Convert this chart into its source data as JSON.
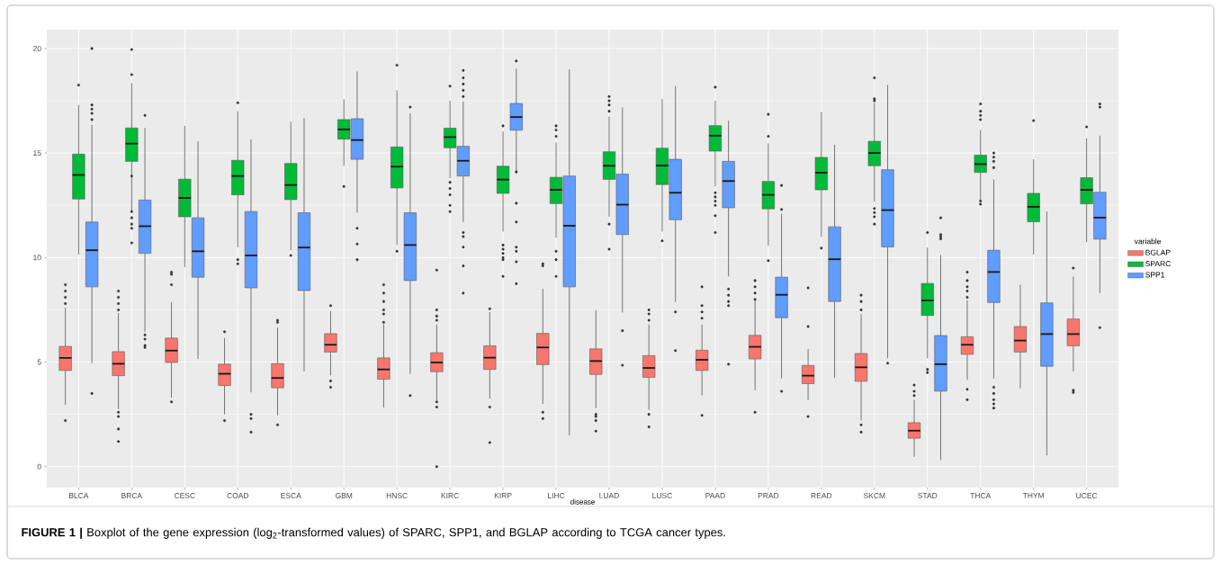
{
  "chart_data": {
    "type": "box",
    "categories": [
      "BLCA",
      "BRCA",
      "CESC",
      "COAD",
      "ESCA",
      "GBM",
      "HNSC",
      "KIRC",
      "KIRP",
      "LIHC",
      "LUAD",
      "LUSC",
      "PAAD",
      "PRAD",
      "READ",
      "SKCM",
      "STAD",
      "THCA",
      "THYM",
      "UCEC"
    ],
    "xlabel": "disease",
    "legend_title": "variable",
    "legend": "right",
    "grid": true,
    "ylim": [
      -1,
      20.9
    ],
    "yticks": [
      0,
      5,
      10,
      15,
      20
    ],
    "annotations": [
      "**FIGURE 1 |** Boxplot of the gene expression (log$_{2}$-transformed values) of SPARC, SPP1, and BGLAP according to TCGA cancer types."
    ],
    "series": [
      {
        "name": "BGLAP",
        "color": "#f8766d",
        "boxes": [
          {
            "low": 2.95,
            "q1": 4.6,
            "median": 5.2,
            "q3": 5.75,
            "high": 7.6,
            "outliers": [
              2.2,
              7.8,
              8.1,
              8.4,
              8.7
            ]
          },
          {
            "low": 2.75,
            "q1": 4.35,
            "median": 4.92,
            "q3": 5.5,
            "high": 7.35,
            "outliers": [
              1.2,
              1.8,
              2.4,
              2.6,
              7.5,
              7.8,
              8.1,
              8.4
            ]
          },
          {
            "low": 3.3,
            "q1": 4.98,
            "median": 5.55,
            "q3": 6.15,
            "high": 7.87,
            "outliers": [
              3.1,
              8.7,
              9.2,
              9.3
            ]
          },
          {
            "low": 2.5,
            "q1": 3.88,
            "median": 4.44,
            "q3": 4.9,
            "high": 6.15,
            "outliers": [
              2.2,
              6.45
            ]
          },
          {
            "low": 2.45,
            "q1": 3.77,
            "median": 4.24,
            "q3": 4.93,
            "high": 6.65,
            "outliers": [
              2.0,
              6.9,
              7.0
            ]
          },
          {
            "low": 4.37,
            "q1": 5.48,
            "median": 5.83,
            "q3": 6.36,
            "high": 7.44,
            "outliers": [
              3.8,
              4.1,
              7.7
            ]
          },
          {
            "low": 2.82,
            "q1": 4.18,
            "median": 4.65,
            "q3": 5.2,
            "high": 6.8,
            "outliers": [
              6.9,
              7.3,
              7.5,
              7.9,
              8.3,
              8.7
            ]
          },
          {
            "low": 3.18,
            "q1": 4.54,
            "median": 4.98,
            "q3": 5.45,
            "high": 6.8,
            "outliers": [
              0.0,
              2.85,
              3.1,
              7.0,
              7.2,
              7.5,
              9.4
            ]
          },
          {
            "low": 3.25,
            "q1": 4.65,
            "median": 5.21,
            "q3": 5.78,
            "high": 7.4,
            "outliers": [
              1.15,
              2.85,
              7.55
            ]
          },
          {
            "low": 3.0,
            "q1": 4.88,
            "median": 5.7,
            "q3": 6.37,
            "high": 8.5,
            "outliers": [
              2.3,
              2.6,
              9.6,
              9.7
            ]
          },
          {
            "low": 2.8,
            "q1": 4.41,
            "median": 5.05,
            "q3": 5.63,
            "high": 7.49,
            "outliers": [
              1.7,
              2.2,
              2.4,
              2.5
            ]
          },
          {
            "low": 2.72,
            "q1": 4.27,
            "median": 4.72,
            "q3": 5.31,
            "high": 6.8,
            "outliers": [
              1.9,
              2.5,
              7.0,
              7.3,
              7.5
            ]
          },
          {
            "low": 3.4,
            "q1": 4.6,
            "median": 5.11,
            "q3": 5.57,
            "high": 6.8,
            "outliers": [
              2.45,
              7.1,
              7.4,
              7.7,
              8.6
            ]
          },
          {
            "low": 3.65,
            "q1": 5.15,
            "median": 5.73,
            "q3": 6.28,
            "high": 7.95,
            "outliers": [
              2.6,
              8.0,
              8.3,
              8.6,
              8.9
            ]
          },
          {
            "low": 3.19,
            "q1": 3.97,
            "median": 4.35,
            "q3": 4.84,
            "high": 5.63,
            "outliers": [
              2.4,
              6.7,
              8.55
            ]
          },
          {
            "low": 2.22,
            "q1": 4.08,
            "median": 4.75,
            "q3": 5.41,
            "high": 7.3,
            "outliers": [
              1.65,
              2.0,
              7.5,
              7.9,
              8.2
            ]
          },
          {
            "low": 0.46,
            "q1": 1.36,
            "median": 1.72,
            "q3": 2.1,
            "high": 3.19,
            "outliers": [
              3.4,
              3.6,
              3.9
            ]
          },
          {
            "low": 4.15,
            "q1": 5.37,
            "median": 5.83,
            "q3": 6.21,
            "high": 7.95,
            "outliers": [
              3.2,
              3.7,
              8.1,
              8.4,
              8.6,
              8.9,
              9.3
            ]
          },
          {
            "low": 3.75,
            "q1": 5.48,
            "median": 6.03,
            "q3": 6.7,
            "high": 8.69
          },
          {
            "low": 4.54,
            "q1": 5.78,
            "median": 6.34,
            "q3": 7.06,
            "high": 9.09,
            "outliers": [
              3.55,
              3.65,
              9.5
            ]
          }
        ]
      },
      {
        "name": "SPARC",
        "color": "#00ba38",
        "boxes": [
          {
            "low": 10.15,
            "q1": 12.8,
            "median": 13.95,
            "q3": 14.95,
            "high": 17.3,
            "outliers": [
              18.25
            ]
          },
          {
            "low": 12.25,
            "q1": 14.6,
            "median": 15.45,
            "q3": 16.2,
            "high": 18.35,
            "outliers": [
              10.7,
              11.4,
              11.6,
              11.9,
              12.2,
              13.9,
              18.75,
              19.95
            ]
          },
          {
            "low": 9.55,
            "q1": 11.95,
            "median": 12.85,
            "q3": 13.75,
            "high": 16.3
          },
          {
            "low": 10.5,
            "q1": 13.0,
            "median": 13.9,
            "q3": 14.65,
            "high": 17.0,
            "outliers": [
              9.7,
              9.9,
              17.4
            ]
          },
          {
            "low": 10.35,
            "q1": 12.77,
            "median": 13.47,
            "q3": 14.5,
            "high": 16.5,
            "outliers": [
              10.1
            ]
          },
          {
            "low": 14.39,
            "q1": 15.66,
            "median": 16.13,
            "q3": 16.6,
            "high": 17.58,
            "outliers": [
              13.4
            ]
          },
          {
            "low": 10.6,
            "q1": 13.33,
            "median": 14.35,
            "q3": 15.29,
            "high": 18.0,
            "outliers": [
              10.3,
              19.2
            ]
          },
          {
            "low": 13.8,
            "q1": 15.25,
            "median": 15.76,
            "q3": 16.19,
            "high": 17.5,
            "outliers": [
              12.2,
              12.5,
              13.0,
              13.3,
              13.6,
              18.2
            ]
          },
          {
            "low": 11.24,
            "q1": 13.07,
            "median": 13.73,
            "q3": 14.37,
            "high": 16.03,
            "outliers": [
              9.1,
              9.9,
              10.0,
              10.2,
              10.4,
              10.6,
              16.3
            ]
          },
          {
            "low": 10.95,
            "q1": 12.58,
            "median": 13.24,
            "q3": 13.84,
            "high": 15.5,
            "outliers": [
              9.1,
              9.9,
              10.3,
              15.8,
              16.1,
              16.3
            ]
          },
          {
            "low": 11.95,
            "q1": 13.74,
            "median": 14.39,
            "q3": 15.06,
            "high": 16.75,
            "outliers": [
              10.4,
              11.6,
              17.0,
              17.3,
              17.5,
              17.7
            ]
          },
          {
            "low": 11.24,
            "q1": 13.49,
            "median": 14.4,
            "q3": 15.23,
            "high": 17.58,
            "outliers": [
              10.8
            ]
          },
          {
            "low": 13.4,
            "q1": 15.09,
            "median": 15.83,
            "q3": 16.31,
            "high": 17.5,
            "outliers": [
              11.2,
              12.0,
              12.5,
              12.7,
              12.9,
              13.1,
              18.15
            ]
          },
          {
            "low": 10.57,
            "q1": 12.33,
            "median": 13.0,
            "q3": 13.64,
            "high": 15.46,
            "outliers": [
              9.85,
              15.8,
              16.85
            ]
          },
          {
            "low": 10.98,
            "q1": 13.24,
            "median": 14.06,
            "q3": 14.79,
            "high": 16.96,
            "outliers": [
              10.45
            ]
          },
          {
            "low": 12.67,
            "q1": 14.39,
            "median": 15.0,
            "q3": 15.56,
            "high": 17.4,
            "outliers": [
              11.6,
              11.95,
              12.15,
              12.35,
              17.5,
              17.6,
              18.6
            ]
          },
          {
            "low": 5.18,
            "q1": 7.23,
            "median": 7.95,
            "q3": 8.76,
            "high": 10.48,
            "outliers": [
              4.5,
              4.65,
              11.2
            ]
          },
          {
            "low": 12.74,
            "q1": 14.07,
            "median": 14.47,
            "q3": 14.9,
            "high": 16.1,
            "outliers": [
              12.55,
              12.7,
              16.6,
              16.8,
              17.0,
              17.35
            ]
          },
          {
            "low": 10.14,
            "q1": 11.71,
            "median": 12.43,
            "q3": 13.07,
            "high": 14.7,
            "outliers": [
              16.55
            ]
          },
          {
            "low": 10.74,
            "q1": 12.57,
            "median": 13.24,
            "q3": 13.82,
            "high": 15.7,
            "outliers": [
              16.25
            ]
          }
        ]
      },
      {
        "name": "SPP1",
        "color": "#619cff",
        "boxes": [
          {
            "low": 4.95,
            "q1": 8.6,
            "median": 10.35,
            "q3": 11.7,
            "high": 16.35,
            "outliers": [
              3.5,
              16.6,
              16.9,
              17.1,
              17.3,
              20.0
            ]
          },
          {
            "low": 6.45,
            "q1": 10.2,
            "median": 11.5,
            "q3": 12.75,
            "high": 16.2,
            "outliers": [
              5.7,
              5.8,
              6.1,
              6.3,
              16.8
            ]
          },
          {
            "low": 5.15,
            "q1": 9.06,
            "median": 10.3,
            "q3": 11.9,
            "high": 15.55
          },
          {
            "low": 3.55,
            "q1": 8.55,
            "median": 10.1,
            "q3": 12.2,
            "high": 15.65,
            "outliers": [
              1.65,
              2.3,
              2.5
            ]
          },
          {
            "low": 4.55,
            "q1": 8.42,
            "median": 10.48,
            "q3": 12.14,
            "high": 16.68
          },
          {
            "low": 12.14,
            "q1": 14.7,
            "median": 15.62,
            "q3": 16.64,
            "high": 18.9,
            "outliers": [
              9.9,
              10.65,
              11.4
            ]
          },
          {
            "low": 4.44,
            "q1": 8.9,
            "median": 10.6,
            "q3": 12.14,
            "high": 16.9,
            "outliers": [
              3.4,
              17.2
            ]
          },
          {
            "low": 11.7,
            "q1": 13.9,
            "median": 14.63,
            "q3": 15.32,
            "high": 17.47,
            "outliers": [
              8.3,
              9.6,
              10.5,
              11.0,
              11.2,
              17.7,
              18.0,
              18.3,
              18.6,
              18.95
            ]
          },
          {
            "low": 14.0,
            "q1": 16.09,
            "median": 16.72,
            "q3": 17.37,
            "high": 19.04,
            "outliers": [
              8.75,
              9.8,
              10.3,
              10.5,
              11.7,
              12.6,
              14.1,
              19.4
            ]
          },
          {
            "low": 1.5,
            "q1": 8.6,
            "median": 11.52,
            "q3": 13.9,
            "high": 19.0
          },
          {
            "low": 7.37,
            "q1": 11.1,
            "median": 12.53,
            "q3": 13.99,
            "high": 17.18,
            "outliers": [
              4.85,
              6.5
            ]
          },
          {
            "low": 7.87,
            "q1": 11.81,
            "median": 13.1,
            "q3": 14.7,
            "high": 18.21,
            "outliers": [
              5.55,
              7.4
            ]
          },
          {
            "low": 9.1,
            "q1": 12.38,
            "median": 13.66,
            "q3": 14.6,
            "high": 16.54,
            "outliers": [
              4.9,
              7.7,
              7.9,
              8.2,
              8.5
            ]
          },
          {
            "low": 4.22,
            "q1": 7.12,
            "median": 8.22,
            "q3": 9.06,
            "high": 12.1,
            "outliers": [
              3.6,
              12.3,
              13.45
            ]
          },
          {
            "low": 4.25,
            "q1": 7.9,
            "median": 9.92,
            "q3": 11.47,
            "high": 15.39
          },
          {
            "low": 5.18,
            "q1": 10.51,
            "median": 12.27,
            "q3": 14.2,
            "high": 18.25,
            "outliers": [
              4.95
            ]
          },
          {
            "low": 0.31,
            "q1": 3.61,
            "median": 4.9,
            "q3": 6.27,
            "high": 10.12,
            "outliers": [
              10.9,
              11.0,
              11.1,
              11.9
            ]
          },
          {
            "low": 4.22,
            "q1": 7.85,
            "median": 9.31,
            "q3": 10.35,
            "high": 13.73,
            "outliers": [
              2.8,
              3.0,
              3.2,
              3.5,
              3.8,
              14.3,
              14.6,
              14.8,
              15.0
            ]
          },
          {
            "low": 0.54,
            "q1": 4.8,
            "median": 6.34,
            "q3": 7.83,
            "high": 12.2
          },
          {
            "low": 8.3,
            "q1": 10.88,
            "median": 11.91,
            "q3": 13.12,
            "high": 15.83,
            "outliers": [
              6.65,
              17.2,
              17.35
            ]
          }
        ]
      }
    ]
  }
}
